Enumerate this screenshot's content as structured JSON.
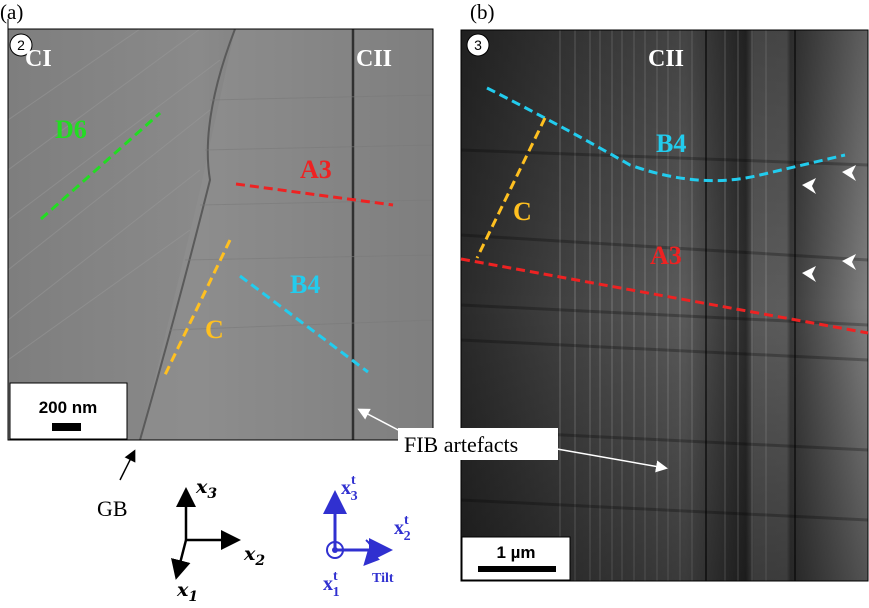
{
  "panel_a": {
    "label": "(a)",
    "badge": "2",
    "grain_left": "CI",
    "grain_right": "CII",
    "lines": {
      "D6": {
        "text": "D6",
        "color": "#22dd22"
      },
      "A3": {
        "text": "A3",
        "color": "#ee2222"
      },
      "B4": {
        "text": "B4",
        "color": "#22ccee"
      },
      "C": {
        "text": "C",
        "color": "#ffc020"
      }
    },
    "scale_bar": "200 nm"
  },
  "panel_b": {
    "label": "(b)",
    "badge": "3",
    "grain": "CII",
    "lines": {
      "B4": {
        "text": "B4",
        "color": "#22ccee"
      },
      "C": {
        "text": "C",
        "color": "#ffc020"
      },
      "A3": {
        "text": "A3",
        "color": "#ee2222"
      }
    },
    "scale_bar": "1 µm"
  },
  "annotations": {
    "fib": "FIB artefacts",
    "gb": "GB"
  },
  "sample_axes": {
    "x3": "x",
    "x3_sub": "3",
    "x2": "x",
    "x2_sub": "2",
    "x1": "x",
    "x1_sub": "1"
  },
  "tilt_axes": {
    "color": "#3030d0",
    "x3": "x",
    "x3_sub": "3",
    "x3_sup": "t",
    "x2": "x",
    "x2_sub": "2",
    "x2_sup": "t",
    "x1": "x",
    "x1_sub": "1",
    "x1_sup": "t",
    "tilt": "Tilt"
  }
}
